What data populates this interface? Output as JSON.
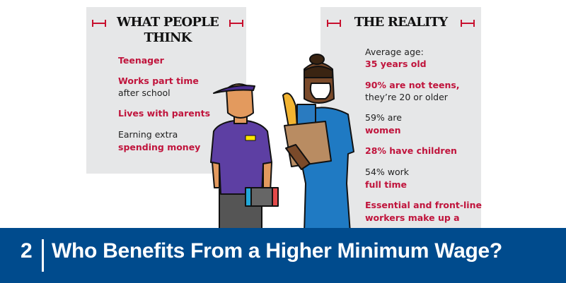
{
  "left_panel": {
    "title_line1": "WHAT PEOPLE",
    "title_line2": "THINK",
    "items": [
      {
        "bold": "Teenager",
        "plain": ""
      },
      {
        "bold": "Works part time",
        "plain": "after school"
      },
      {
        "bold": "Lives with parents",
        "plain": ""
      },
      {
        "plain": "Earning extra",
        "bold": "spending money"
      }
    ]
  },
  "right_panel": {
    "title": "THE REALITY",
    "lines": [
      {
        "text": "Average age:",
        "style": "plain"
      },
      {
        "text": "35 years old",
        "style": "bold"
      },
      {
        "text": "90% are not teens,",
        "style": "bold"
      },
      {
        "text": "they’re 20 or older",
        "style": "plain"
      },
      {
        "text": "59% are",
        "style": "plain"
      },
      {
        "text": "women",
        "style": "bold"
      },
      {
        "text": "28% have children",
        "style": "bold"
      },
      {
        "text": "54% work",
        "style": "plain"
      },
      {
        "text": "full time",
        "style": "bold"
      },
      {
        "text": "Essential and front-line",
        "style": "bold"
      },
      {
        "text": "workers make up a",
        "style": "bold"
      }
    ]
  },
  "banner": {
    "number": "2",
    "title": "Who Benefits From a Higher Minimum Wage?"
  },
  "colors": {
    "accent": "#c0143c",
    "banner": "#004b8d",
    "panel": "#e6e7e8"
  }
}
